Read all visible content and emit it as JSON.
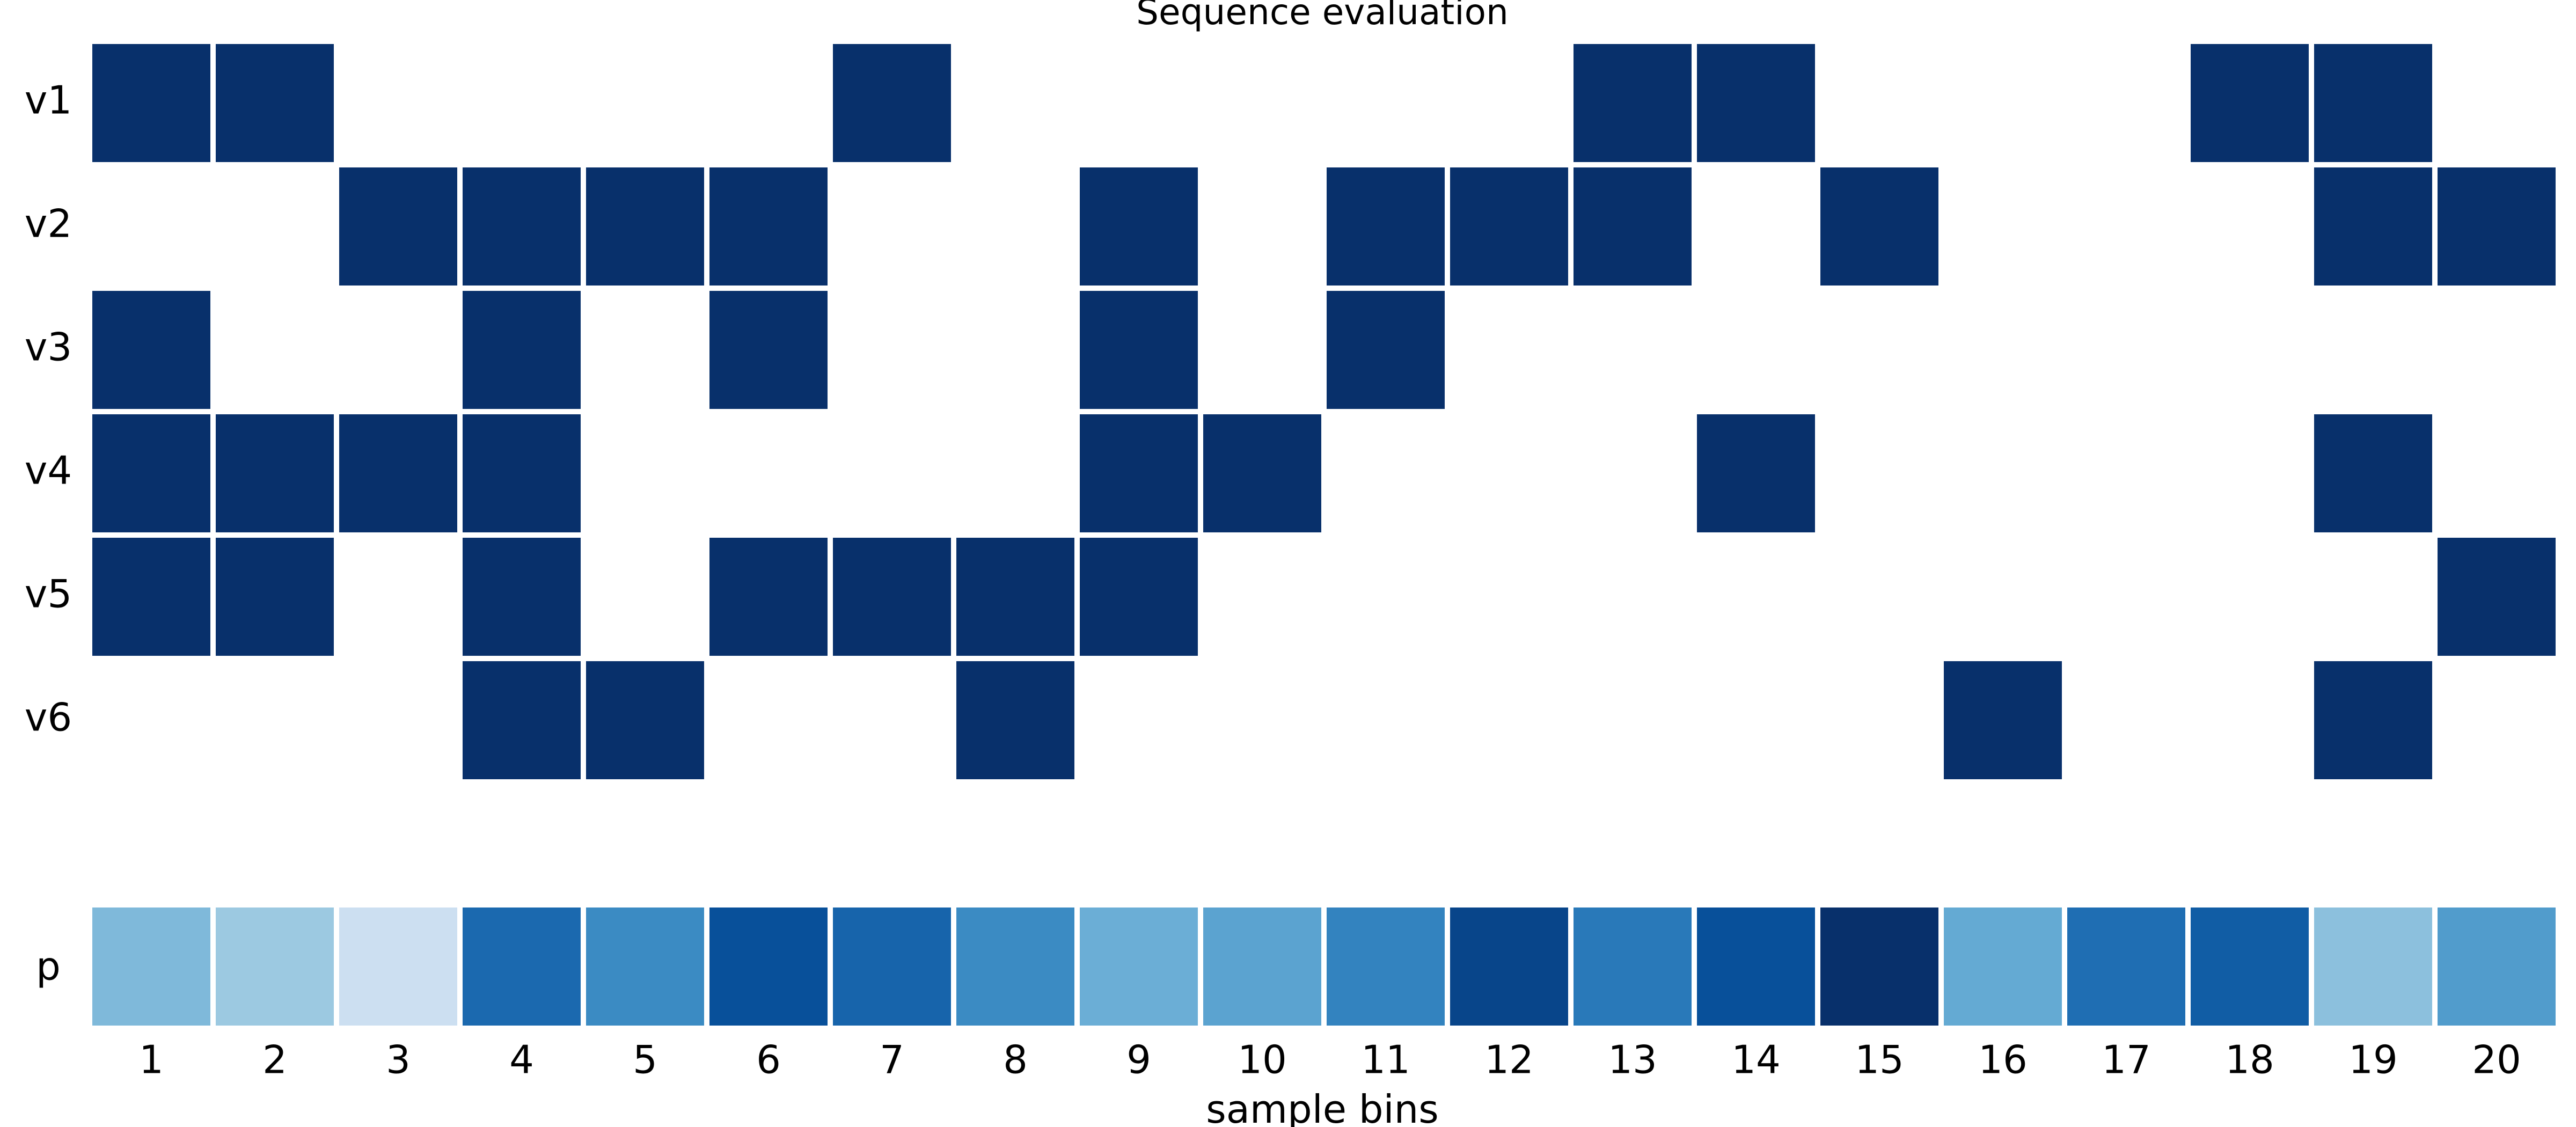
{
  "chart_data": {
    "type": "heatmap",
    "title": "Sequence evaluation",
    "xlabel": "sample bins",
    "ylabel": "",
    "x": [
      "1",
      "2",
      "3",
      "4",
      "5",
      "6",
      "7",
      "8",
      "9",
      "10",
      "11",
      "12",
      "13",
      "14",
      "15",
      "16",
      "17",
      "18",
      "19",
      "20"
    ],
    "rows": [
      "v1",
      "v2",
      "v3",
      "v4",
      "v5",
      "v6"
    ],
    "matrix": [
      [
        1,
        1,
        0,
        0,
        0,
        0,
        1,
        0,
        0,
        0,
        0,
        0,
        1,
        1,
        0,
        0,
        0,
        1,
        1,
        0
      ],
      [
        0,
        0,
        1,
        1,
        1,
        1,
        0,
        0,
        1,
        0,
        1,
        1,
        1,
        0,
        1,
        0,
        0,
        0,
        1,
        1
      ],
      [
        1,
        0,
        0,
        1,
        0,
        1,
        0,
        0,
        1,
        0,
        1,
        0,
        0,
        0,
        0,
        0,
        0,
        0,
        0,
        0
      ],
      [
        1,
        1,
        1,
        1,
        0,
        0,
        0,
        0,
        1,
        1,
        0,
        0,
        0,
        1,
        0,
        0,
        0,
        0,
        1,
        0
      ],
      [
        1,
        1,
        0,
        1,
        0,
        1,
        1,
        1,
        1,
        0,
        0,
        0,
        0,
        0,
        0,
        0,
        0,
        0,
        0,
        1
      ],
      [
        0,
        0,
        0,
        1,
        1,
        0,
        0,
        1,
        0,
        0,
        0,
        0,
        0,
        0,
        0,
        1,
        0,
        0,
        1,
        0
      ]
    ],
    "p_row_label": "p",
    "p_values": [
      0.45,
      0.38,
      0.22,
      0.78,
      0.65,
      0.88,
      0.8,
      0.65,
      0.5,
      0.55,
      0.68,
      0.92,
      0.72,
      0.88,
      1.0,
      0.52,
      0.76,
      0.83,
      0.42,
      0.58
    ],
    "p_range": [
      0,
      1
    ],
    "colors": {
      "active": "#08306b",
      "inactive": "#ffffff",
      "separator": "#ffffff",
      "p_colormap": "Blues"
    },
    "grid": false,
    "legend": "none"
  }
}
